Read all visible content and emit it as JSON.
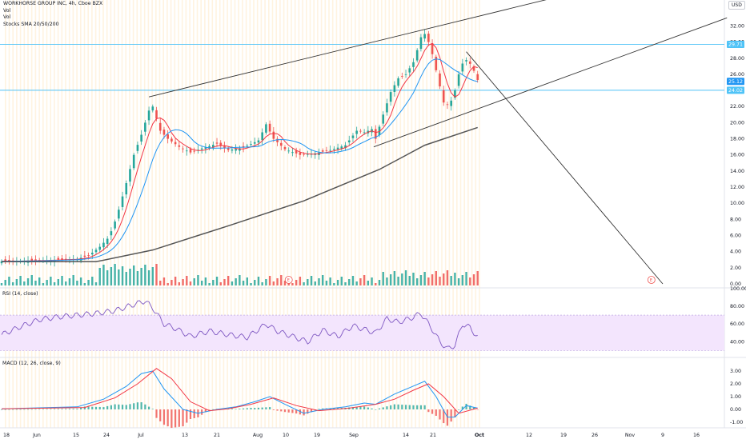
{
  "header": {
    "symbol_line": "WORKHORSE GROUP INC, 4h, Cboe BZX",
    "vol_label_1": "Vol",
    "vol_label_2": "Vol",
    "sma_label": "Stocks SMA 20/50/200",
    "currency": "USD"
  },
  "colors": {
    "up": "#26a69a",
    "down": "#ef5350",
    "sma_fast": "#f23645",
    "sma_mid": "#2196f3",
    "sma_slow": "#555555",
    "trendline": "#333333",
    "hline": "#4fc3f7",
    "rsi_line": "#7e57c2",
    "rsi_band": "#f3e5fd",
    "macd_line": "#2196f3",
    "signal_line": "#f23645",
    "session_stripe": "#fff3e0"
  },
  "chart_data": [
    {
      "type": "candlestick",
      "title": "WORKHORSE GROUP INC, 4h, Cboe BZX",
      "ylabel": "USD",
      "ylim": [
        0,
        33
      ],
      "y_ticks": [
        "0.00",
        "2.00",
        "4.00",
        "6.00",
        "8.00",
        "10.00",
        "12.00",
        "14.00",
        "16.00",
        "18.00",
        "20.00",
        "22.00",
        "24.00",
        "26.00",
        "28.00",
        "30.00",
        "32.00"
      ],
      "x_ticks": [
        "18",
        "Jun",
        "15",
        "24",
        "Jul",
        "13",
        "21",
        "Aug",
        "10",
        "19",
        "Sep",
        "14",
        "21",
        "Oct",
        "12",
        "19",
        "26",
        "Nov",
        "9",
        "16"
      ],
      "price_labels": [
        "29.71",
        "25.12",
        "24.02"
      ],
      "horizontal_lines": [
        29.71,
        24.02
      ],
      "close_path": [
        {
          "x": 0,
          "close": 2.8
        },
        {
          "x": 10,
          "close": 2.9
        },
        {
          "x": 20,
          "close": 3.1
        },
        {
          "x": 23,
          "close": 3.5
        },
        {
          "x": 26,
          "close": 4.6
        },
        {
          "x": 28,
          "close": 5.6
        },
        {
          "x": 29.5,
          "close": 7.0
        },
        {
          "x": 31,
          "close": 9.2
        },
        {
          "x": 33,
          "close": 12.5
        },
        {
          "x": 35,
          "close": 16.0
        },
        {
          "x": 37,
          "close": 18.5
        },
        {
          "x": 39,
          "close": 21.5
        },
        {
          "x": 40,
          "close": 22.0
        },
        {
          "x": 42,
          "close": 19.0
        },
        {
          "x": 44,
          "close": 18.0
        },
        {
          "x": 47,
          "close": 17.0
        },
        {
          "x": 50,
          "close": 16.3
        },
        {
          "x": 53,
          "close": 16.8
        },
        {
          "x": 57,
          "close": 17.4
        },
        {
          "x": 60,
          "close": 16.6
        },
        {
          "x": 64,
          "close": 16.9
        },
        {
          "x": 68,
          "close": 17.8
        },
        {
          "x": 70,
          "close": 19.8
        },
        {
          "x": 72,
          "close": 18.0
        },
        {
          "x": 75,
          "close": 16.7
        },
        {
          "x": 79,
          "close": 16.0
        },
        {
          "x": 83,
          "close": 16.2
        },
        {
          "x": 87,
          "close": 16.6
        },
        {
          "x": 91,
          "close": 17.2
        },
        {
          "x": 94,
          "close": 19.0
        },
        {
          "x": 96,
          "close": 18.8
        },
        {
          "x": 98,
          "close": 19.2
        },
        {
          "x": 99,
          "close": 18.0
        },
        {
          "x": 101,
          "close": 21.0
        },
        {
          "x": 103,
          "close": 23.8
        },
        {
          "x": 105,
          "close": 25.5
        },
        {
          "x": 107,
          "close": 26.0
        },
        {
          "x": 109,
          "close": 27.5
        },
        {
          "x": 110,
          "close": 29.0
        },
        {
          "x": 111,
          "close": 30.6
        },
        {
          "x": 112,
          "close": 31.0
        },
        {
          "x": 113,
          "close": 30.0
        },
        {
          "x": 114,
          "close": 28.5
        },
        {
          "x": 115,
          "close": 26.5
        },
        {
          "x": 116,
          "close": 24.5
        },
        {
          "x": 117,
          "close": 22.5
        },
        {
          "x": 118,
          "close": 22.2
        },
        {
          "x": 119.5,
          "close": 23.0
        },
        {
          "x": 121,
          "close": 26.0
        },
        {
          "x": 122.5,
          "close": 28.0
        },
        {
          "x": 124,
          "close": 27.3
        },
        {
          "x": 125.5,
          "close": 26.0
        },
        {
          "x": 126,
          "close": 25.3
        }
      ],
      "sma_200": [
        {
          "x": 0,
          "y": 2.75
        },
        {
          "x": 25,
          "y": 2.75
        },
        {
          "x": 40,
          "y": 4.2
        },
        {
          "x": 60,
          "y": 7.2
        },
        {
          "x": 80,
          "y": 10.3
        },
        {
          "x": 100,
          "y": 14.2
        },
        {
          "x": 112,
          "y": 17.2
        },
        {
          "x": 126,
          "y": 19.4
        }
      ],
      "trendlines": [
        {
          "x": [
            39,
            155
          ],
          "y": [
            23.2,
            36.5
          ]
        },
        {
          "x": [
            98.5,
            192
          ],
          "y": [
            17.0,
            33.0
          ]
        },
        {
          "x": [
            123,
            175
          ],
          "y": [
            28.8,
            0.0
          ]
        }
      ]
    },
    {
      "type": "line",
      "title": "RSI (14, close)",
      "y_ticks": [
        "100.00",
        "80.00",
        "60.00",
        "40.00"
      ],
      "band": [
        30,
        70
      ],
      "ylim": [
        20,
        100
      ],
      "values": [
        {
          "x": 0,
          "y": 48
        },
        {
          "x": 5,
          "y": 57
        },
        {
          "x": 10,
          "y": 65
        },
        {
          "x": 15,
          "y": 68
        },
        {
          "x": 20,
          "y": 70
        },
        {
          "x": 25,
          "y": 72
        },
        {
          "x": 30,
          "y": 75
        },
        {
          "x": 35,
          "y": 82
        },
        {
          "x": 38,
          "y": 86
        },
        {
          "x": 40,
          "y": 78
        },
        {
          "x": 43,
          "y": 60
        },
        {
          "x": 46,
          "y": 55
        },
        {
          "x": 50,
          "y": 46
        },
        {
          "x": 55,
          "y": 52
        },
        {
          "x": 60,
          "y": 48
        },
        {
          "x": 65,
          "y": 45
        },
        {
          "x": 70,
          "y": 60
        },
        {
          "x": 73,
          "y": 52
        },
        {
          "x": 77,
          "y": 46
        },
        {
          "x": 81,
          "y": 40
        },
        {
          "x": 85,
          "y": 53
        },
        {
          "x": 89,
          "y": 46
        },
        {
          "x": 93,
          "y": 58
        },
        {
          "x": 96,
          "y": 54
        },
        {
          "x": 99,
          "y": 50
        },
        {
          "x": 102,
          "y": 66
        },
        {
          "x": 105,
          "y": 62
        },
        {
          "x": 108,
          "y": 66
        },
        {
          "x": 111,
          "y": 72
        },
        {
          "x": 114,
          "y": 54
        },
        {
          "x": 116,
          "y": 40
        },
        {
          "x": 118,
          "y": 32
        },
        {
          "x": 120,
          "y": 36
        },
        {
          "x": 122,
          "y": 60
        },
        {
          "x": 124,
          "y": 56
        },
        {
          "x": 126,
          "y": 45
        }
      ]
    },
    {
      "type": "line",
      "title": "MACD (12, 26, close, 9)",
      "y_ticks": [
        "3.00",
        "2.00",
        "1.00",
        "0.00",
        "-1.00"
      ],
      "ylim": [
        -1.5,
        3.5
      ],
      "macd": [
        {
          "x": 0,
          "y": 0.05
        },
        {
          "x": 20,
          "y": 0.2
        },
        {
          "x": 27,
          "y": 0.8
        },
        {
          "x": 33,
          "y": 1.8
        },
        {
          "x": 37,
          "y": 2.8
        },
        {
          "x": 40,
          "y": 3.0
        },
        {
          "x": 43,
          "y": 1.6
        },
        {
          "x": 48,
          "y": 0.0
        },
        {
          "x": 52,
          "y": -0.3
        },
        {
          "x": 57,
          "y": 0.0
        },
        {
          "x": 62,
          "y": 0.2
        },
        {
          "x": 67,
          "y": 0.6
        },
        {
          "x": 71,
          "y": 1.0
        },
        {
          "x": 75,
          "y": 0.4
        },
        {
          "x": 80,
          "y": -0.3
        },
        {
          "x": 85,
          "y": 0.0
        },
        {
          "x": 91,
          "y": 0.2
        },
        {
          "x": 96,
          "y": 0.5
        },
        {
          "x": 99,
          "y": 0.4
        },
        {
          "x": 104,
          "y": 1.2
        },
        {
          "x": 108,
          "y": 1.7
        },
        {
          "x": 112,
          "y": 2.2
        },
        {
          "x": 115,
          "y": 1.0
        },
        {
          "x": 118,
          "y": -0.6
        },
        {
          "x": 120,
          "y": -0.6
        },
        {
          "x": 123,
          "y": 0.3
        },
        {
          "x": 126,
          "y": 0.1
        }
      ],
      "signal": [
        {
          "x": 0,
          "y": 0.05
        },
        {
          "x": 22,
          "y": 0.15
        },
        {
          "x": 30,
          "y": 0.9
        },
        {
          "x": 36,
          "y": 2.0
        },
        {
          "x": 41,
          "y": 3.2
        },
        {
          "x": 45,
          "y": 2.4
        },
        {
          "x": 50,
          "y": 0.6
        },
        {
          "x": 55,
          "y": -0.1
        },
        {
          "x": 60,
          "y": 0.05
        },
        {
          "x": 66,
          "y": 0.4
        },
        {
          "x": 72,
          "y": 0.9
        },
        {
          "x": 78,
          "y": 0.3
        },
        {
          "x": 84,
          "y": -0.1
        },
        {
          "x": 92,
          "y": 0.1
        },
        {
          "x": 99,
          "y": 0.4
        },
        {
          "x": 104,
          "y": 0.8
        },
        {
          "x": 109,
          "y": 1.5
        },
        {
          "x": 113,
          "y": 2.0
        },
        {
          "x": 117,
          "y": 1.0
        },
        {
          "x": 121,
          "y": -0.3
        },
        {
          "x": 126,
          "y": 0.1
        }
      ]
    }
  ]
}
